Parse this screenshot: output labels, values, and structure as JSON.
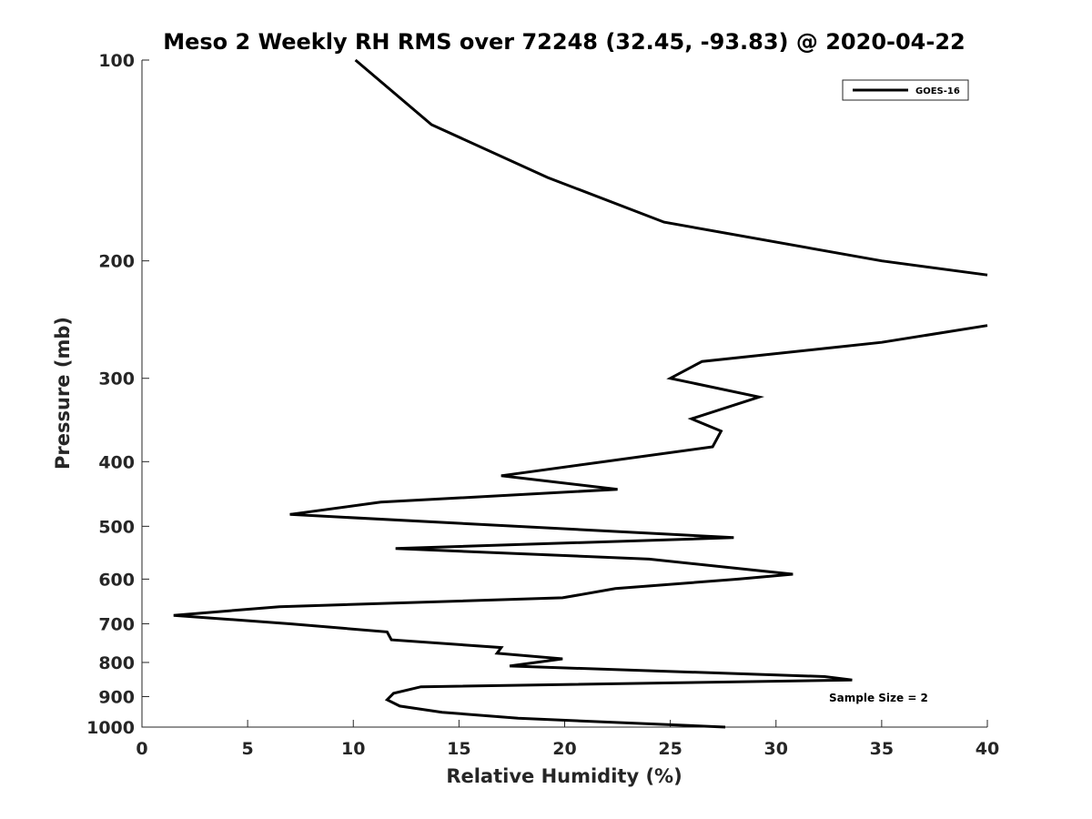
{
  "chart_data": {
    "type": "line",
    "title": "Meso 2 Weekly RH RMS over 72248 (32.45, -93.83) @ 2020-04-22",
    "xlabel": "Relative Humidity (%)",
    "ylabel": "Pressure (mb)",
    "xlim": [
      0,
      40
    ],
    "ylim": [
      100,
      1000
    ],
    "yscale": "log",
    "yreversed": true,
    "grid": false,
    "legend_position": "top-right",
    "xticks": [
      0,
      5,
      10,
      15,
      20,
      25,
      30,
      35,
      40
    ],
    "yticks": [
      100,
      200,
      300,
      400,
      500,
      600,
      700,
      800,
      900,
      1000
    ],
    "annotation": "Sample Size = 2",
    "series": [
      {
        "name": "GOES-16",
        "color": "#000000",
        "segments": [
          {
            "x": [
              10.1,
              13.7,
              19.2,
              24.7,
              35.0,
              40.0
            ],
            "y": [
              100,
              125,
              150,
              175,
              200,
              210
            ]
          },
          {
            "x": [
              40.0,
              35.0,
              26.5,
              25.0,
              29.2,
              26.0,
              27.4,
              27.0,
              17.0,
              22.5,
              11.3,
              7.0,
              28.0,
              12.0,
              24.0,
              30.8,
              28.2,
              22.4,
              19.9,
              6.5,
              1.5,
              7.0,
              11.6,
              11.8,
              17.0,
              16.8,
              19.9,
              17.4,
              32.3,
              33.6,
              13.2,
              11.9,
              11.6,
              12.2,
              14.2,
              17.8,
              27.6
            ],
            "y": [
              250,
              265,
              283,
              300,
              320,
              345,
              360,
              380,
              420,
              440,
              460,
              480,
              520,
              540,
              560,
              590,
              600,
              620,
              640,
              660,
              680,
              700,
              720,
              740,
              760,
              775,
              790,
              810,
              840,
              850,
              870,
              890,
              910,
              930,
              950,
              970,
              1000
            ]
          }
        ]
      }
    ]
  }
}
